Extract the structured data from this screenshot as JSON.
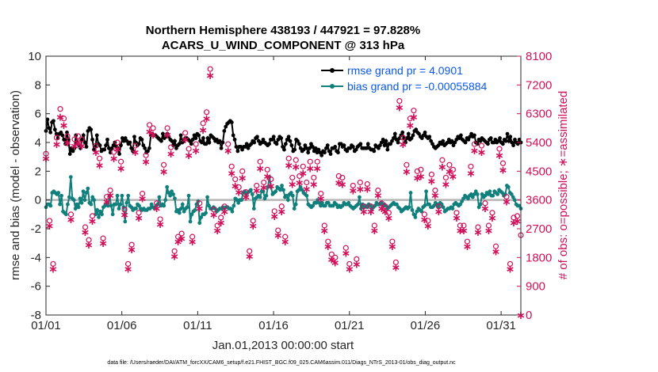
{
  "chart_data": {
    "type": "line",
    "title_line1": "Northern Hemisphere 438193 / 447921 = 97.828%",
    "title_line2": "ACARS_U_WIND_COMPONENT @ 313 hPa",
    "ylabel_left": "rmse and bias (model - observation)",
    "ylabel_right": "# of obs: o=possible; ∗=assimilated",
    "xlabel": "Jan.01,2013 00:00:00 start",
    "footnote": "data file: /Users/raeder/DAI/ATM_forcXX/CAM6_setup/f.e21.FHIST_BGC.f09_025.CAM6assim.011/Diags_NTrS_2013-01/obs_diag_output.nc",
    "ylim_left": [
      -8,
      10
    ],
    "ylim_right": [
      0,
      8100
    ],
    "xlim": [
      0,
      31.3
    ],
    "x_tick_labels": [
      "01/01",
      "01/06",
      "01/11",
      "01/16",
      "01/21",
      "01/26",
      "01/31"
    ],
    "x_tick_values": [
      0,
      5,
      10,
      15,
      20,
      25,
      30
    ],
    "y_left_ticks": [
      "-8",
      "-6",
      "-4",
      "-2",
      "0",
      "2",
      "4",
      "6",
      "8",
      "10"
    ],
    "y_right_ticks": [
      "0",
      "900",
      "1800",
      "2700",
      "3600",
      "4500",
      "5400",
      "6300",
      "7200",
      "8100"
    ],
    "legend": [
      {
        "label": "rmse grand pr = 4.0901",
        "color": "#000000"
      },
      {
        "label": "bias grand pr = -0.00055884",
        "color": "#11807d"
      }
    ],
    "series": [
      {
        "name": "rmse",
        "color": "#000000",
        "axis": "left",
        "values": [
          4.8,
          5.6,
          5.0,
          4.7,
          5.4,
          5.5,
          4.9,
          4.6,
          4.3,
          4.6,
          4.7,
          4.5,
          4.2,
          3.9,
          4.7,
          4.2,
          3.2,
          3.6,
          3.4,
          3.6,
          4.5,
          4.0,
          3.8,
          3.6,
          4.2,
          4.5,
          4.0,
          3.7,
          4.8,
          5.0,
          4.9,
          4.2,
          3.5,
          3.7,
          4.5,
          3.9,
          3.8,
          3.4,
          3.5,
          3.5,
          3.8,
          4.2,
          3.6,
          3.3,
          3.6,
          3.8,
          4.0,
          3.7,
          3.6,
          3.2,
          3.8,
          4.3,
          4.1,
          4.3,
          4.1,
          3.9,
          4.0,
          3.6,
          3.4,
          4.4,
          4.0,
          3.8,
          3.9,
          4.3,
          4.2,
          3.8,
          3.6,
          3.3,
          3.4,
          3.6,
          4.5,
          4.6,
          4.5,
          4.5,
          4.4,
          4.3,
          4.2,
          4.1,
          4.6,
          4.3,
          4.4,
          4.6,
          4.4,
          4.2,
          4.1,
          3.8,
          4.1,
          3.6,
          3.8,
          3.9,
          4.5,
          4.0,
          4.1,
          4.3,
          4.3,
          4.2,
          4.1,
          3.9,
          4.2,
          4.5,
          4.3,
          4.6,
          4.5,
          4.1,
          4.0,
          4.3,
          3.9,
          3.9,
          4.3,
          4.0,
          4.5,
          4.4,
          4.3,
          4.1,
          4.2,
          4.0,
          4.1,
          3.6,
          4.0,
          4.8,
          5.1,
          5.3,
          5.4,
          5.5,
          5.4,
          4.5,
          4.2,
          3.7,
          3.4,
          3.7,
          3.7,
          3.5,
          3.7,
          3.7,
          3.9,
          3.6,
          3.8,
          3.9,
          4.1,
          4.0,
          4.3,
          4.4,
          4.1,
          3.9,
          4.0,
          4.2,
          4.0,
          3.9,
          3.8,
          3.9,
          4.2,
          4.2,
          4.4,
          4.0,
          3.9,
          4.2,
          4.4,
          4.3,
          3.7,
          3.5,
          3.9,
          4.2,
          4.4,
          4.1,
          3.8,
          3.4,
          3.5,
          4.2,
          4.1,
          3.9,
          3.6,
          3.4,
          3.5,
          3.8,
          3.6,
          3.3,
          3.6,
          3.9,
          3.7,
          3.4,
          3.6,
          3.3,
          3.5,
          3.3,
          3.1,
          3.4,
          3.3,
          3.6,
          3.8,
          3.4,
          3.2,
          3.6,
          3.6,
          3.7,
          3.4,
          3.3,
          3.9,
          3.9,
          3.7,
          3.8,
          3.5,
          3.4,
          3.6,
          3.6,
          3.8,
          3.7,
          3.4,
          3.5,
          3.7,
          3.8,
          3.9,
          3.6,
          3.6,
          3.6,
          3.6,
          3.9,
          3.6,
          3.5,
          3.5,
          3.4,
          3.8,
          3.7,
          3.6,
          3.8,
          4.0,
          4.2,
          3.8,
          4.1,
          3.5,
          3.9,
          3.9,
          4.1,
          4.3,
          4.6,
          4.2,
          4.0,
          4.3,
          4.5,
          4.7,
          4.3,
          4.0,
          4.3,
          4.6,
          4.2,
          4.3,
          4.5,
          4.8,
          4.9,
          4.7,
          4.6,
          4.4,
          4.3,
          4.5,
          4.7,
          4.4,
          4.3,
          4.4,
          4.1,
          3.9,
          3.7,
          3.6,
          3.7,
          3.8,
          4.0,
          3.9,
          4.1,
          3.8,
          3.9,
          4.0,
          4.2,
          4.0,
          4.1,
          3.8,
          4.0,
          4.2,
          4.4,
          4.3,
          4.5,
          4.2,
          4.1,
          4.0,
          4.3,
          4.2,
          4.4,
          4.6,
          4.4,
          4.5,
          4.0,
          3.9,
          4.2,
          4.1,
          4.3,
          4.2,
          4.1,
          4.0,
          3.9,
          4.2,
          4.3,
          4.0,
          4.0,
          4.2,
          4.0,
          4.1,
          4.3,
          4.0,
          3.9,
          4.2,
          4.1,
          4.6,
          4.1,
          4.4,
          4.0,
          3.8,
          4.2,
          4.0,
          3.9,
          4.2,
          4.0
        ]
      },
      {
        "name": "bias",
        "color": "#11807d",
        "axis": "left",
        "values": [
          -0.5,
          -0.3,
          -0.3,
          -0.4,
          0.5,
          0.6,
          0.5,
          0.4,
          0.5,
          -0.3,
          0.3,
          -0.8,
          -0.9,
          -1.0,
          -0.3,
          0.2,
          1.6,
          0.1,
          0.0,
          -0.6,
          -0.3,
          -0.5,
          0.1,
          -0.2,
          0.6,
          0.0,
          0.5,
          0.8,
          -0.2,
          -0.3,
          0.2,
          0.0,
          -1.0,
          -0.7,
          -1.2,
          -0.8,
          -1.0,
          -0.5,
          -0.4,
          -0.3,
          -0.4,
          0.3,
          -0.4,
          -1.0,
          -0.3,
          -0.3,
          0.3,
          -0.6,
          -0.3,
          0.3,
          -0.5,
          -1.5,
          -0.2,
          0.3,
          -0.4,
          -0.5,
          -0.7,
          -0.6,
          -0.6,
          -0.3,
          -0.4,
          -0.6,
          -0.7,
          -0.6,
          -0.7,
          -0.7,
          -0.6,
          -0.6,
          -0.3,
          -0.5,
          -0.6,
          -0.4,
          -0.3,
          0.2,
          -0.4,
          -0.3,
          -0.4,
          0.0,
          0.9,
          0.5,
          0.3,
          0.6,
          0.4,
          0.1,
          -0.8,
          -0.7,
          -0.9,
          -0.6,
          -0.3,
          -0.8,
          -0.6,
          -0.5,
          0.3,
          -1.5,
          -1.0,
          -0.8,
          -0.7,
          -0.3,
          -0.1,
          -1.6,
          -1.2,
          -1.0,
          -1.0,
          -0.9,
          0.2,
          -0.4,
          -0.6,
          -0.6,
          -0.5,
          -0.6,
          -0.8,
          -0.7,
          -0.6,
          -0.6,
          -0.5,
          -0.6,
          -0.5,
          -0.5,
          -0.6,
          -0.6,
          -0.8,
          -0.4,
          0.1,
          0.0,
          -0.2,
          0.0,
          0.0,
          0.5,
          0.6,
          0.4,
          0.5,
          0.6,
          0.7,
          0.4,
          -0.6,
          0.1,
          0.2,
          0.3,
          0.2,
          0.6,
          0.6,
          0.1,
          0.3,
          0.9,
          1.6,
          0.9,
          0.4,
          0.5,
          0.6,
          0.9,
          0.8,
          0.7,
          1.0,
          0.7,
          0.2,
          0.3,
          0.0,
          0.4,
          0.5,
          0.3,
          -0.6,
          -0.3,
          0.6,
          0.7,
          0.9,
          0.7,
          0.5,
          0.4,
          0.3,
          -0.3,
          -0.4,
          -0.5,
          -0.4,
          -0.2,
          -0.2,
          0.0,
          -0.2,
          -0.4,
          -0.2,
          -0.4,
          -0.4,
          -0.2,
          -0.2,
          -0.4,
          -0.4,
          -0.4,
          -0.2,
          -0.3,
          -0.5,
          -0.4,
          -0.5,
          -0.4,
          -0.2,
          -0.3,
          -0.3,
          -0.2,
          -0.4,
          -0.5,
          -0.6,
          -0.5,
          -0.4,
          -0.3,
          0.2,
          -0.6,
          -0.3,
          -0.5,
          -0.4,
          -0.5,
          -0.3,
          -0.4,
          -0.6,
          -0.5,
          -0.4,
          -0.2,
          -0.3,
          -0.3,
          -0.2,
          -0.4,
          -0.3,
          -0.4,
          -0.6,
          -0.5,
          -0.4,
          -0.3,
          -0.2,
          -0.3,
          -0.3,
          -0.5,
          -0.6,
          -0.8,
          -0.7,
          -0.6,
          -0.5,
          -0.6,
          -0.5,
          0.5,
          -0.7,
          -1.0,
          -1.2,
          -0.8,
          -0.6,
          -0.7,
          -0.8,
          -0.5,
          -0.4,
          0.6,
          -0.3,
          -0.3,
          -0.5,
          -0.5,
          -0.4,
          -0.2,
          -0.3,
          -0.5,
          -0.2,
          -0.3,
          -0.5,
          -0.8,
          -0.7,
          -0.6,
          -0.6,
          -0.5,
          -0.6,
          -0.3,
          -0.2,
          -0.3,
          -0.4,
          -0.3,
          -0.1,
          0.1,
          0.3,
          0.2,
          0.1,
          0.3,
          0.4,
          0.2,
          0.4,
          0.6,
          0.4,
          -0.5,
          -0.3,
          0.4,
          0.2,
          0.3,
          0.5,
          0.4,
          0.6,
          0.3,
          0.3,
          0.6,
          0.5,
          0.4,
          0.7,
          0.6,
          0.5,
          0.3,
          0.4,
          1.0,
          0.9,
          0.5,
          0.4,
          0.2,
          0.0,
          -0.3,
          -0.4,
          -0.4,
          -0.6
        ]
      },
      {
        "name": "obs_possible",
        "color": "#d0105a",
        "axis": "right",
        "marker": "o",
        "values": [
          4950,
          2850,
          1500,
          5450,
          6350,
          6050,
          5500,
          3050,
          5400,
          5500,
          5400,
          2650,
          2250,
          3000,
          5200,
          4800,
          2300,
          3600,
          3800,
          5000,
          5300,
          4700,
          3200,
          1500,
          2100,
          5200,
          3100,
          3700,
          4900,
          5850,
          5750,
          3400,
          2900,
          4600,
          5750,
          5150,
          1900,
          2350,
          2450,
          5600,
          5100,
          2350,
          5250,
          3400,
          5900,
          6250,
          7600,
          3200,
          2700,
          2950,
          3300,
          5250,
          4550,
          4150,
          3900,
          4400,
          3750,
          1900,
          2850,
          3950,
          4700,
          4050,
          4450,
          4150,
          3150,
          2550,
          3300,
          2350,
          4800,
          4200,
          4750,
          4250,
          4550,
          4050,
          4700,
          4200,
          4700,
          3700,
          2700,
          2200,
          1800,
          1700,
          4250,
          4200,
          2000,
          1500,
          3950,
          1650,
          4050,
          3300,
          4000,
          3300,
          2700,
          3800,
          3400,
          3300,
          3100,
          2200,
          1550,
          6600,
          5450,
          4600,
          6050,
          6300,
          4400,
          4450,
          3050,
          2850,
          4300,
          3800,
          3300,
          4750,
          4200,
          4600,
          4450,
          3100,
          2700,
          2700,
          2200,
          4550,
          5250,
          2650,
          5200,
          3400,
          2700,
          3100,
          2050,
          5100,
          4650,
          3600,
          1500,
          2950,
          3000,
          2400
        ]
      },
      {
        "name": "obs_assimilated",
        "color": "#d0105a",
        "axis": "right",
        "marker": "*",
        "values": [
          4900,
          2800,
          1450,
          5350,
          6200,
          5950,
          5400,
          3000,
          5300,
          5400,
          5300,
          2600,
          2200,
          2950,
          5100,
          4700,
          2250,
          3550,
          3750,
          4900,
          5200,
          4600,
          3150,
          1450,
          2050,
          5100,
          3050,
          3650,
          4800,
          5750,
          5650,
          3350,
          2850,
          4500,
          5650,
          5050,
          1850,
          2300,
          2400,
          5500,
          5000,
          2300,
          5150,
          3350,
          5800,
          6150,
          7500,
          3150,
          2650,
          2900,
          3250,
          5150,
          4450,
          4050,
          3850,
          4300,
          3700,
          1850,
          2800,
          3900,
          4600,
          4000,
          4350,
          4050,
          3100,
          2500,
          3250,
          2300,
          4700,
          4100,
          4650,
          4150,
          4450,
          3950,
          4600,
          4100,
          4600,
          3650,
          2650,
          2150,
          1750,
          1650,
          4150,
          4100,
          1950,
          1450,
          3900,
          1600,
          3950,
          3250,
          3950,
          3250,
          2650,
          3750,
          3350,
          3250,
          3050,
          2150,
          1500,
          6500,
          5350,
          4500,
          5950,
          6200,
          4300,
          4350,
          3000,
          2800,
          4200,
          3750,
          3250,
          4650,
          4100,
          4500,
          4350,
          3050,
          2650,
          2650,
          2150,
          4450,
          5150,
          2600,
          5100,
          3350,
          2650,
          3050,
          2000,
          5000,
          4550,
          3550,
          1450,
          2900,
          2950,
          0
        ]
      }
    ]
  }
}
